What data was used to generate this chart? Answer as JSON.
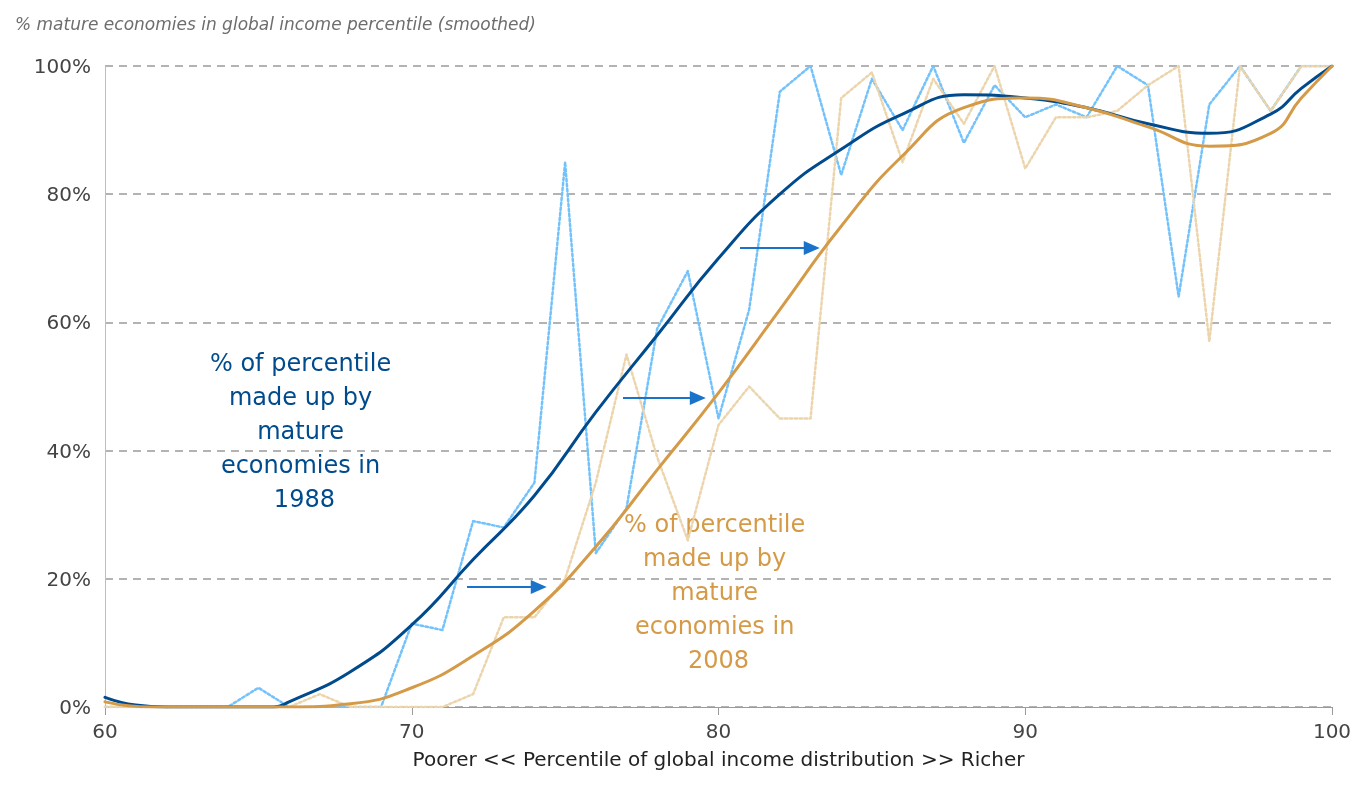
{
  "chart_data": {
    "type": "line",
    "title": "% mature economies in global income percentile (smoothed)",
    "xlabel": "Poorer << Percentile of global income distribution >> Richer",
    "xlim": [
      60,
      100
    ],
    "xticks": [
      60,
      70,
      80,
      90,
      100
    ],
    "ylim": [
      0,
      100
    ],
    "yticks": [
      {
        "value": 0,
        "label": "0%"
      },
      {
        "value": 20,
        "label": "20%"
      },
      {
        "value": 40,
        "label": "40%"
      },
      {
        "value": 60,
        "label": "60%"
      },
      {
        "value": 80,
        "label": "80%"
      },
      {
        "value": 100,
        "label": "100%"
      }
    ],
    "grid": "y",
    "legend": false,
    "marker": "none",
    "series": [
      {
        "color": "#74c2fb",
        "line_style": "dotted",
        "x": [
          60,
          61,
          62,
          63,
          64,
          65,
          66,
          67,
          68,
          69,
          70,
          71,
          72,
          73,
          74,
          75,
          76,
          77,
          78,
          79,
          80,
          81,
          82,
          83,
          84,
          85,
          86,
          87,
          88,
          89,
          90,
          91,
          92,
          93,
          94,
          95,
          96,
          97,
          98,
          99,
          100
        ],
        "values": [
          0,
          0,
          0,
          0,
          0,
          3,
          0,
          0,
          0,
          0,
          13,
          12,
          29,
          28,
          35,
          85,
          24,
          31,
          59,
          68,
          45,
          62,
          96,
          100,
          83,
          98,
          90,
          100,
          88,
          97,
          92,
          94,
          92,
          100,
          97,
          64,
          94,
          100,
          93,
          100,
          100
        ]
      },
      {
        "color": "#ecd5ad",
        "line_style": "dotted",
        "x": [
          60,
          61,
          62,
          63,
          64,
          65,
          66,
          67,
          68,
          69,
          70,
          71,
          72,
          73,
          74,
          75,
          76,
          77,
          78,
          79,
          80,
          81,
          82,
          83,
          84,
          85,
          86,
          87,
          88,
          89,
          90,
          91,
          92,
          93,
          94,
          95,
          96,
          97,
          98,
          99,
          100
        ],
        "values": [
          0,
          0,
          0,
          0,
          0,
          0,
          0,
          2,
          0,
          0,
          0,
          0,
          2,
          14,
          14,
          20,
          35,
          55,
          39,
          26,
          44,
          50,
          45,
          45,
          95,
          99,
          85,
          98,
          91,
          100,
          84,
          92,
          92,
          93,
          97,
          100,
          57,
          100,
          93,
          100,
          100
        ]
      },
      {
        "name": "% of percentile made up by mature economies in 1988",
        "color": "#004b8d",
        "line_style": "solid",
        "x": [
          60,
          61,
          62,
          64,
          65.5,
          66,
          68,
          70,
          72,
          74,
          76,
          78,
          80,
          82,
          84,
          86,
          88,
          90,
          92,
          94,
          96,
          98,
          99,
          100
        ],
        "values": [
          1.5,
          0.3,
          0,
          0,
          0,
          0.8,
          5.5,
          12.8,
          23,
          33,
          46,
          58,
          70,
          80,
          87,
          92.5,
          95.5,
          95,
          93.5,
          91,
          89.5,
          92.5,
          96.5,
          100
        ]
      },
      {
        "name": "% of percentile made up by mature economies in 2008",
        "color": "#d49a47",
        "line_style": "solid",
        "x": [
          60,
          61.5,
          66,
          68,
          70,
          72,
          74,
          76,
          78,
          80,
          82,
          84,
          86,
          88,
          90,
          92,
          94,
          96,
          98,
          99,
          100
        ],
        "values": [
          0.8,
          0,
          0,
          0.5,
          3,
          8,
          15,
          25,
          37,
          49,
          62,
          75,
          86,
          93.5,
          95,
          93.5,
          90.5,
          87.5,
          89.5,
          95,
          100
        ]
      }
    ]
  }
}
